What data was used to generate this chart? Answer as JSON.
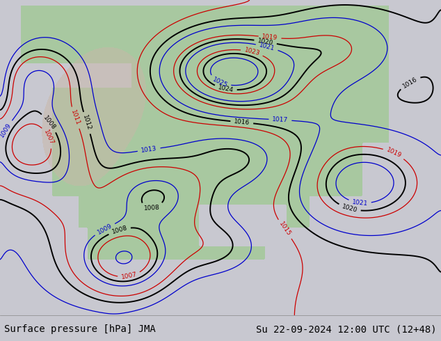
{
  "title_left": "Surface pressure [hPa] JMA",
  "title_right": "Su 22-09-2024 12:00 UTC (12+48)",
  "bg_color": "#c8c8d0",
  "land_color": "#a8c8a0",
  "footer_bg": "#c8c8d0",
  "footer_text_color": "#000000",
  "footer_fontsize": 10,
  "figsize": [
    6.34,
    4.9
  ],
  "dpi": 100,
  "contour_lw_black": 1.4,
  "contour_lw_color": 0.9,
  "label_fontsize": 6.5
}
